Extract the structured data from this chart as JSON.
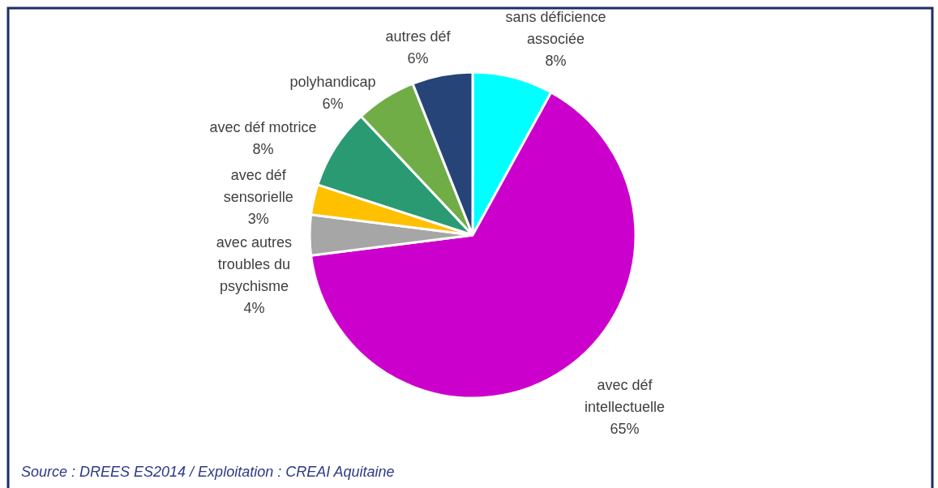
{
  "chart_data": {
    "type": "pie",
    "categories": [
      "sans déficience associée",
      "avec déf intellectuelle",
      "avec autres troubles du psychisme",
      "avec déf sensorielle",
      "avec déf motrice",
      "polyhandicap",
      "autres déf"
    ],
    "values": [
      8,
      65,
      4,
      3,
      8,
      6,
      6
    ],
    "colors": [
      "#00ffff",
      "#cc00cc",
      "#a6a6a6",
      "#ffc000",
      "#2a9a72",
      "#70ad47",
      "#264478"
    ],
    "value_labels": [
      "8%",
      "65%",
      "4%",
      "3%",
      "8%",
      "6%",
      "6%"
    ],
    "annotations": [
      "Source : DREES ES2014 / Exploitation : CREAI Aquitaine"
    ]
  }
}
